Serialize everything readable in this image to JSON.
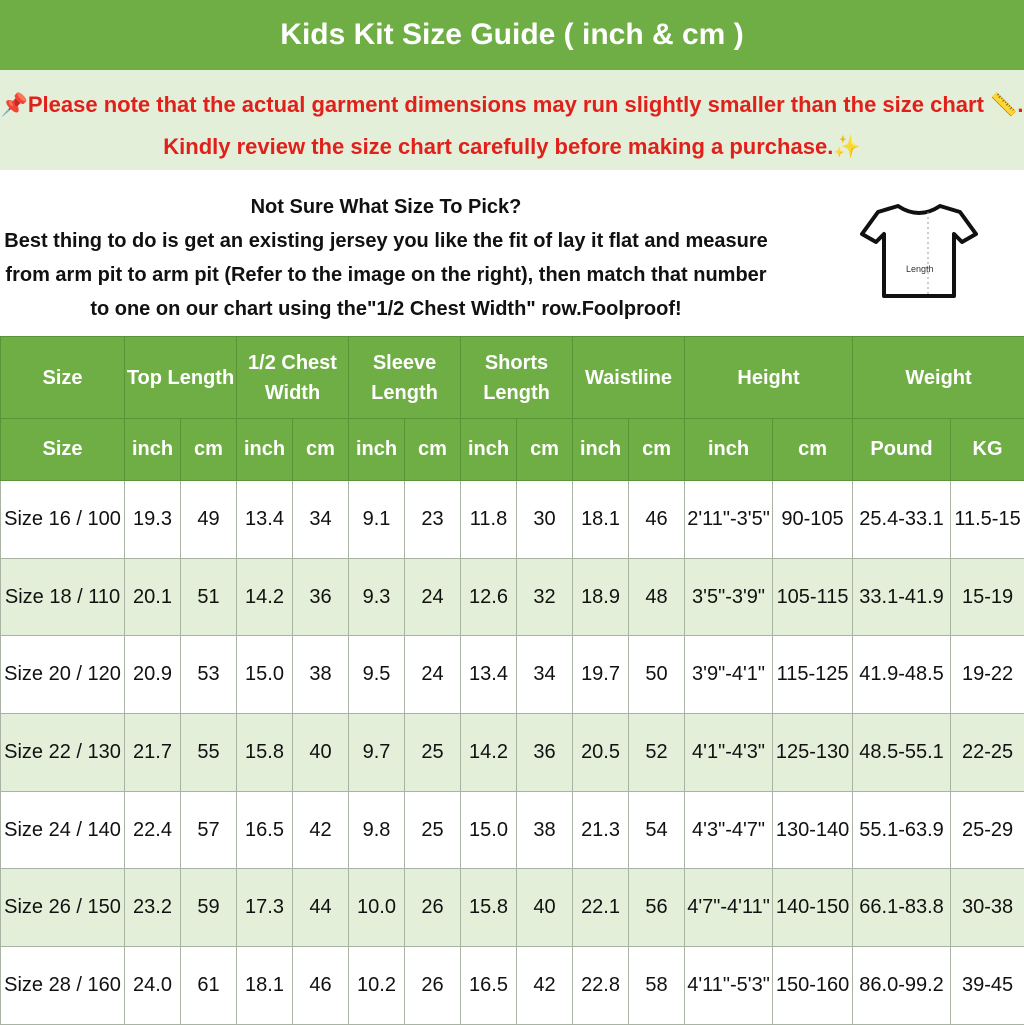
{
  "title": "Kids Kit Size Guide ( inch & cm )",
  "note": {
    "line1": "📌Please note that the actual garment dimensions may run slightly smaller than the size chart 📏.",
    "line2": "Kindly review the size chart carefully before making a purchase.✨"
  },
  "info": {
    "heading": "Not Sure What Size To Pick?",
    "body": "Best thing to do is get an existing jersey you like the fit of lay it flat and measure from arm pit to arm pit (Refer to the image on the right), then match that number to one on our chart using the\"1/2 Chest Width\" row.Foolproof!",
    "shirt_label": "Length"
  },
  "colors": {
    "header": "#6fae44",
    "stripe": "#e4efd9",
    "note": "#e0201b"
  },
  "table": {
    "groups": [
      {
        "label": "Size",
        "span": 1
      },
      {
        "label": "Top Length",
        "span": 2
      },
      {
        "label": "1/2 Chest Width",
        "span": 2
      },
      {
        "label": "Sleeve Length",
        "span": 2
      },
      {
        "label": "Shorts Length",
        "span": 2
      },
      {
        "label": "Waistline",
        "span": 2
      },
      {
        "label": "Height",
        "span": 2
      },
      {
        "label": "Weight",
        "span": 2
      }
    ],
    "units": [
      "Size",
      "inch",
      "cm",
      "inch",
      "cm",
      "inch",
      "cm",
      "inch",
      "cm",
      "inch",
      "cm",
      "inch",
      "cm",
      "Pound",
      "KG"
    ],
    "rows": [
      [
        "Size 16 / 100",
        "19.3",
        "49",
        "13.4",
        "34",
        "9.1",
        "23",
        "11.8",
        "30",
        "18.1",
        "46",
        "2'11\"-3'5\"",
        "90-105",
        "25.4-33.1",
        "11.5-15"
      ],
      [
        "Size 18 / 110",
        "20.1",
        "51",
        "14.2",
        "36",
        "9.3",
        "24",
        "12.6",
        "32",
        "18.9",
        "48",
        "3'5\"-3'9\"",
        "105-115",
        "33.1-41.9",
        "15-19"
      ],
      [
        "Size 20 / 120",
        "20.9",
        "53",
        "15.0",
        "38",
        "9.5",
        "24",
        "13.4",
        "34",
        "19.7",
        "50",
        "3'9\"-4'1\"",
        "115-125",
        "41.9-48.5",
        "19-22"
      ],
      [
        "Size 22 / 130",
        "21.7",
        "55",
        "15.8",
        "40",
        "9.7",
        "25",
        "14.2",
        "36",
        "20.5",
        "52",
        "4'1\"-4'3\"",
        "125-130",
        "48.5-55.1",
        "22-25"
      ],
      [
        "Size 24 / 140",
        "22.4",
        "57",
        "16.5",
        "42",
        "9.8",
        "25",
        "15.0",
        "38",
        "21.3",
        "54",
        "4'3\"-4'7\"",
        "130-140",
        "55.1-63.9",
        "25-29"
      ],
      [
        "Size 26 / 150",
        "23.2",
        "59",
        "17.3",
        "44",
        "10.0",
        "26",
        "15.8",
        "40",
        "22.1",
        "56",
        "4'7\"-4'11\"",
        "140-150",
        "66.1-83.8",
        "30-38"
      ],
      [
        "Size 28 / 160",
        "24.0",
        "61",
        "18.1",
        "46",
        "10.2",
        "26",
        "16.5",
        "42",
        "22.8",
        "58",
        "4'11\"-5'3\"",
        "150-160",
        "86.0-99.2",
        "39-45"
      ]
    ]
  }
}
